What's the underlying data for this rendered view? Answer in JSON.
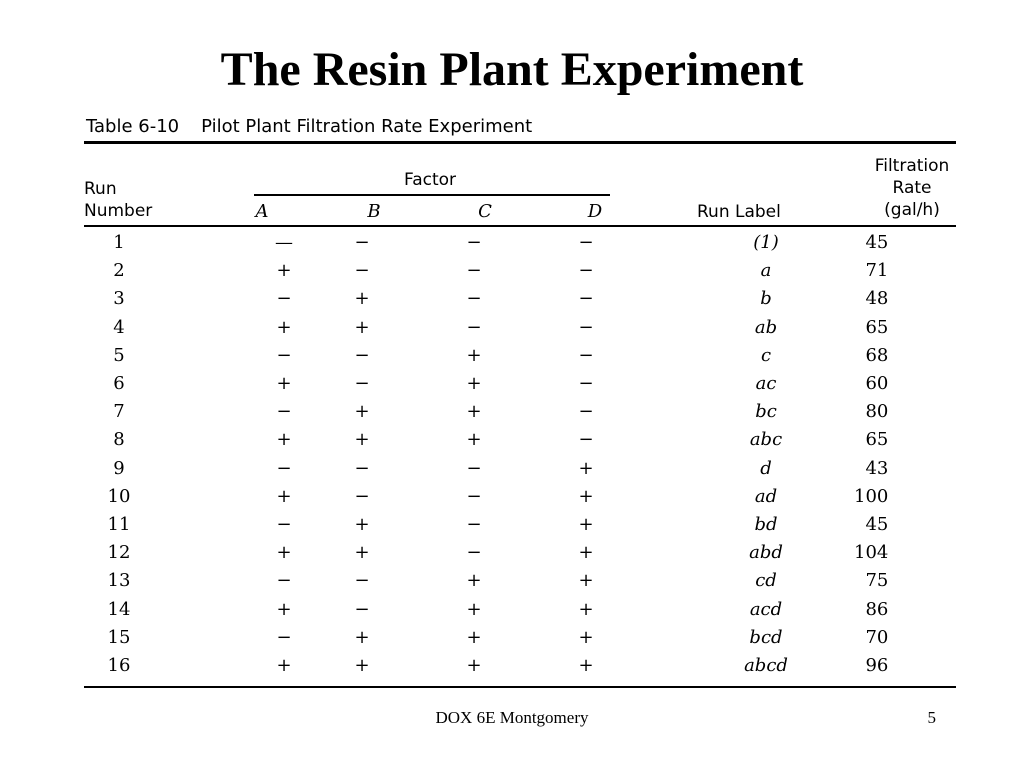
{
  "slide": {
    "title": "The Resin Plant Experiment"
  },
  "table": {
    "caption_number": "Table 6-10",
    "caption_text": "Pilot Plant Filtration Rate Experiment",
    "headers": {
      "run_line1": "Run",
      "run_line2": "Number",
      "factor": "Factor",
      "factors": [
        "A",
        "B",
        "C",
        "D"
      ],
      "run_label": "Run Label",
      "rate_line1": "Filtration",
      "rate_line2": "Rate",
      "rate_line3": "(gal/h)"
    },
    "rows": [
      {
        "run": "1",
        "a": "—",
        "b": "−",
        "c": "−",
        "d": "−",
        "label": "(1)",
        "rate": "45"
      },
      {
        "run": "2",
        "a": "+",
        "b": "−",
        "c": "−",
        "d": "−",
        "label": "a",
        "rate": "71"
      },
      {
        "run": "3",
        "a": "−",
        "b": "+",
        "c": "−",
        "d": "−",
        "label": "b",
        "rate": "48"
      },
      {
        "run": "4",
        "a": "+",
        "b": "+",
        "c": "−",
        "d": "−",
        "label": "ab",
        "rate": "65"
      },
      {
        "run": "5",
        "a": "−",
        "b": "−",
        "c": "+",
        "d": "−",
        "label": "c",
        "rate": "68"
      },
      {
        "run": "6",
        "a": "+",
        "b": "−",
        "c": "+",
        "d": "−",
        "label": "ac",
        "rate": "60"
      },
      {
        "run": "7",
        "a": "−",
        "b": "+",
        "c": "+",
        "d": "−",
        "label": "bc",
        "rate": "80"
      },
      {
        "run": "8",
        "a": "+",
        "b": "+",
        "c": "+",
        "d": "−",
        "label": "abc",
        "rate": "65"
      },
      {
        "run": "9",
        "a": "−",
        "b": "−",
        "c": "−",
        "d": "+",
        "label": "d",
        "rate": "43"
      },
      {
        "run": "10",
        "a": "+",
        "b": "−",
        "c": "−",
        "d": "+",
        "label": "ad",
        "rate": "100"
      },
      {
        "run": "11",
        "a": "−",
        "b": "+",
        "c": "−",
        "d": "+",
        "label": "bd",
        "rate": "45"
      },
      {
        "run": "12",
        "a": "+",
        "b": "+",
        "c": "−",
        "d": "+",
        "label": "abd",
        "rate": "104"
      },
      {
        "run": "13",
        "a": "−",
        "b": "−",
        "c": "+",
        "d": "+",
        "label": "cd",
        "rate": "75"
      },
      {
        "run": "14",
        "a": "+",
        "b": "−",
        "c": "+",
        "d": "+",
        "label": "acd",
        "rate": "86"
      },
      {
        "run": "15",
        "a": "−",
        "b": "+",
        "c": "+",
        "d": "+",
        "label": "bcd",
        "rate": "70"
      },
      {
        "run": "16",
        "a": "+",
        "b": "+",
        "c": "+",
        "d": "+",
        "label": "abcd",
        "rate": "96"
      }
    ]
  },
  "footer": {
    "source": "DOX 6E Montgomery",
    "page": "5"
  }
}
